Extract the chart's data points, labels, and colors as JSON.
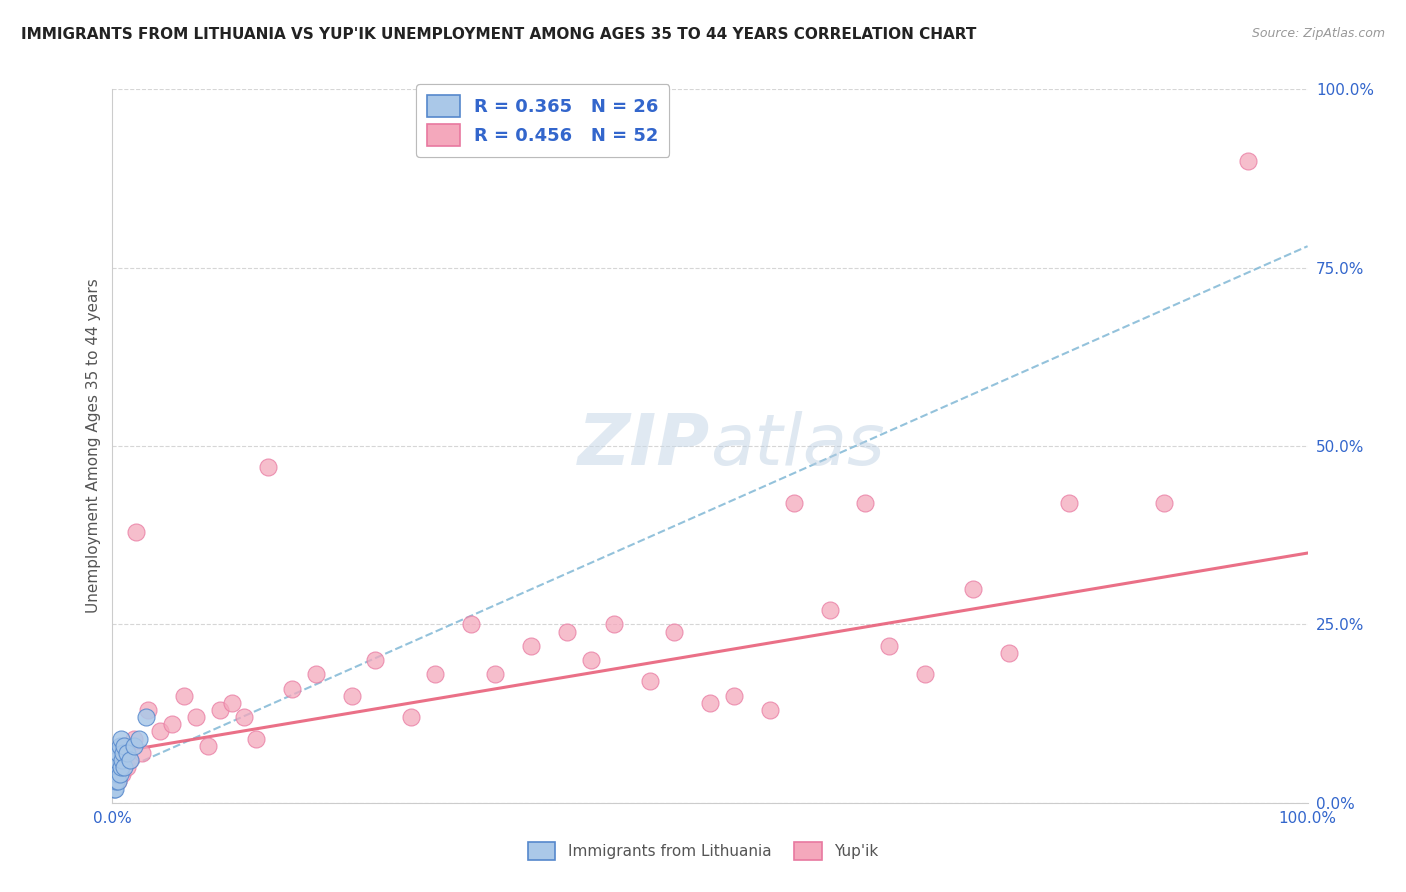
{
  "title": "IMMIGRANTS FROM LITHUANIA VS YUP'IK UNEMPLOYMENT AMONG AGES 35 TO 44 YEARS CORRELATION CHART",
  "source": "Source: ZipAtlas.com",
  "ylabel": "Unemployment Among Ages 35 to 44 years",
  "xlabel_blue": "Immigrants from Lithuania",
  "xlabel_pink": "Yup'ik",
  "xlim": [
    0,
    1.0
  ],
  "ylim": [
    0,
    1.0
  ],
  "ytick_labels": [
    "0.0%",
    "25.0%",
    "50.0%",
    "75.0%",
    "100.0%"
  ],
  "ytick_values": [
    0.0,
    0.25,
    0.5,
    0.75,
    1.0
  ],
  "xtick_labels": [
    "0.0%",
    "100.0%"
  ],
  "blue_R": 0.365,
  "blue_N": 26,
  "pink_R": 0.456,
  "pink_N": 52,
  "blue_color": "#aac8e8",
  "pink_color": "#f4a8bc",
  "blue_edge_color": "#5588cc",
  "pink_edge_color": "#e878a0",
  "blue_trend_color": "#88bcd8",
  "pink_trend_color": "#e8607a",
  "watermark_color": "#c8d8e8",
  "blue_scatter_x": [
    0.001,
    0.001,
    0.001,
    0.002,
    0.002,
    0.002,
    0.003,
    0.003,
    0.003,
    0.004,
    0.004,
    0.005,
    0.005,
    0.006,
    0.006,
    0.007,
    0.007,
    0.008,
    0.009,
    0.01,
    0.01,
    0.012,
    0.015,
    0.018,
    0.022,
    0.028
  ],
  "blue_scatter_y": [
    0.02,
    0.03,
    0.05,
    0.02,
    0.04,
    0.06,
    0.03,
    0.05,
    0.07,
    0.04,
    0.06,
    0.03,
    0.07,
    0.04,
    0.08,
    0.05,
    0.09,
    0.06,
    0.07,
    0.05,
    0.08,
    0.07,
    0.06,
    0.08,
    0.09,
    0.12
  ],
  "pink_scatter_x": [
    0.002,
    0.003,
    0.004,
    0.005,
    0.006,
    0.007,
    0.008,
    0.009,
    0.01,
    0.012,
    0.015,
    0.018,
    0.02,
    0.025,
    0.03,
    0.04,
    0.05,
    0.06,
    0.07,
    0.08,
    0.09,
    0.1,
    0.11,
    0.12,
    0.13,
    0.15,
    0.17,
    0.2,
    0.22,
    0.25,
    0.27,
    0.3,
    0.32,
    0.35,
    0.38,
    0.4,
    0.42,
    0.45,
    0.47,
    0.5,
    0.52,
    0.55,
    0.57,
    0.6,
    0.63,
    0.65,
    0.68,
    0.72,
    0.75,
    0.8,
    0.88,
    0.95
  ],
  "pink_scatter_y": [
    0.05,
    0.04,
    0.06,
    0.03,
    0.07,
    0.05,
    0.04,
    0.06,
    0.08,
    0.05,
    0.06,
    0.09,
    0.38,
    0.07,
    0.13,
    0.1,
    0.11,
    0.15,
    0.12,
    0.08,
    0.13,
    0.14,
    0.12,
    0.09,
    0.47,
    0.16,
    0.18,
    0.15,
    0.2,
    0.12,
    0.18,
    0.25,
    0.18,
    0.22,
    0.24,
    0.2,
    0.25,
    0.17,
    0.24,
    0.14,
    0.15,
    0.13,
    0.42,
    0.27,
    0.42,
    0.22,
    0.18,
    0.3,
    0.21,
    0.42,
    0.42,
    0.9
  ],
  "blue_trend_x0": 0.0,
  "blue_trend_y0": 0.04,
  "blue_trend_x1": 1.0,
  "blue_trend_y1": 0.78,
  "pink_trend_x0": 0.0,
  "pink_trend_y0": 0.07,
  "pink_trend_x1": 1.0,
  "pink_trend_y1": 0.35
}
